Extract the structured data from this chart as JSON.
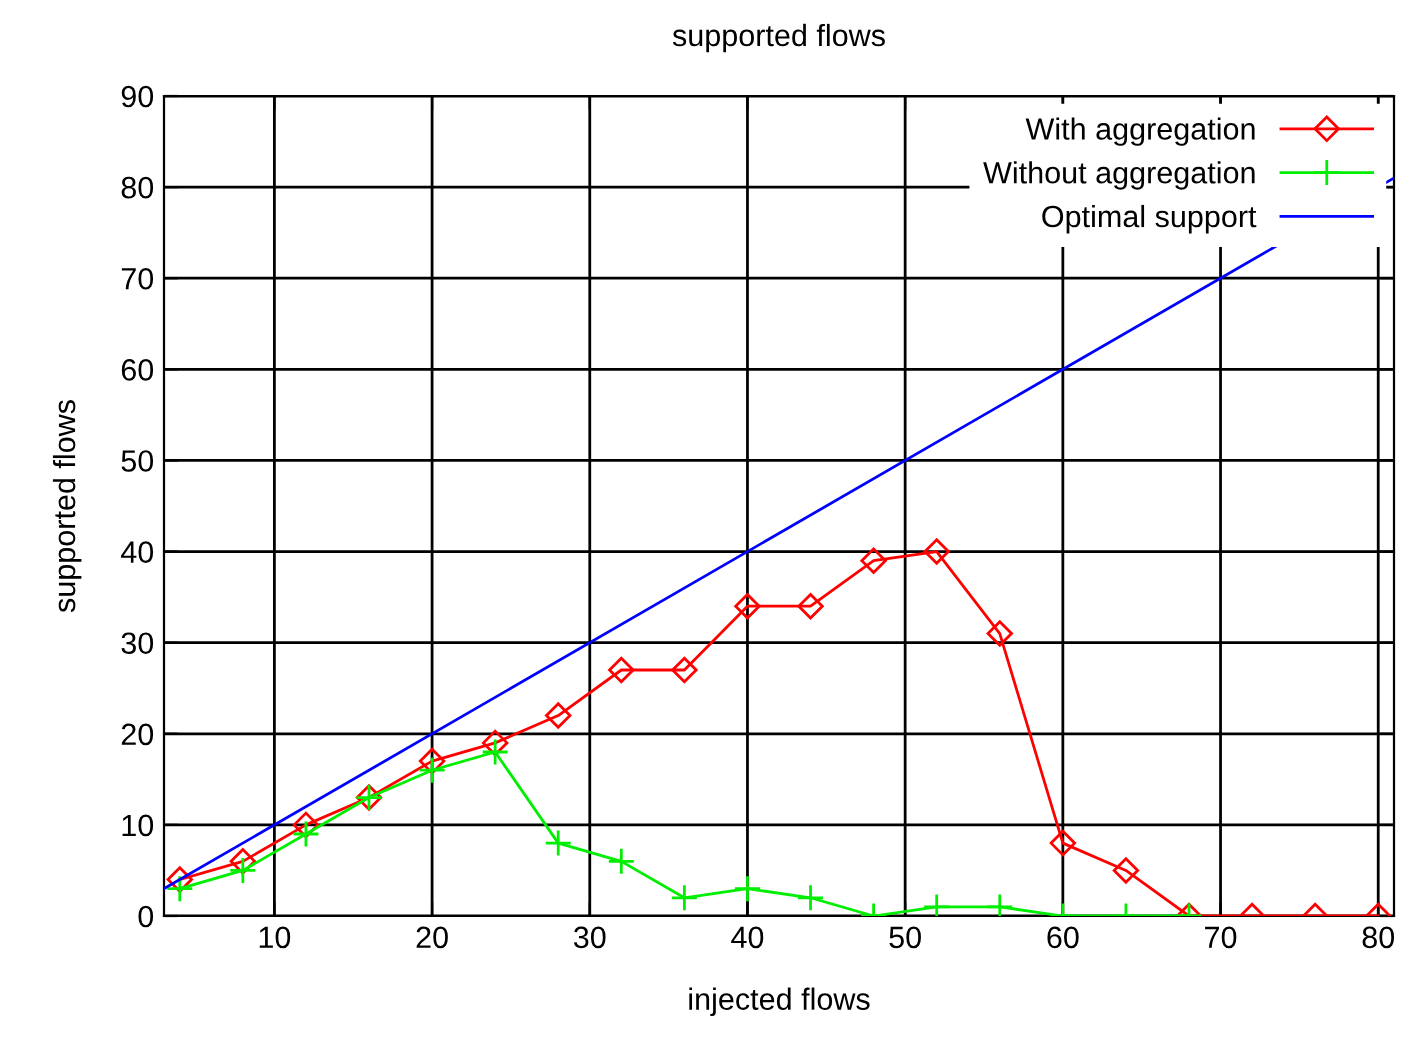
{
  "chart_data": {
    "type": "line",
    "title": "supported flows",
    "xlabel": "injected flows",
    "ylabel": "supported flows",
    "xlim": [
      3,
      81
    ],
    "xticks": [
      10,
      20,
      30,
      40,
      50,
      60,
      70,
      80
    ],
    "ylim": [
      0,
      90
    ],
    "yticks": [
      0,
      10,
      20,
      30,
      40,
      50,
      60,
      70,
      80,
      90
    ],
    "grid": true,
    "legend": "top right",
    "series": [
      {
        "name": "With aggregation",
        "color": "#ff0000",
        "marker": "diamond",
        "x": [
          4,
          8,
          12,
          16,
          20,
          24,
          28,
          32,
          36,
          40,
          44,
          48,
          52,
          56,
          60,
          64,
          68,
          72,
          76,
          80
        ],
        "values": [
          4,
          6,
          10,
          13,
          17,
          19,
          22,
          27,
          27,
          34,
          34,
          39,
          40,
          31,
          8,
          5,
          0,
          0,
          0,
          0
        ]
      },
      {
        "name": "Without aggregation",
        "color": "#00ee00",
        "marker": "cross",
        "x": [
          4,
          8,
          12,
          16,
          20,
          24,
          28,
          32,
          36,
          40,
          44,
          48,
          52,
          56,
          60,
          64,
          68
        ],
        "values": [
          3,
          5,
          9,
          13,
          16,
          18,
          8,
          6,
          2,
          3,
          2,
          0,
          1,
          1,
          0,
          0,
          0
        ]
      },
      {
        "name": "Optimal support",
        "color": "#0000ff",
        "marker": "none",
        "x": [
          3,
          81
        ],
        "values": [
          3,
          81
        ]
      }
    ]
  }
}
